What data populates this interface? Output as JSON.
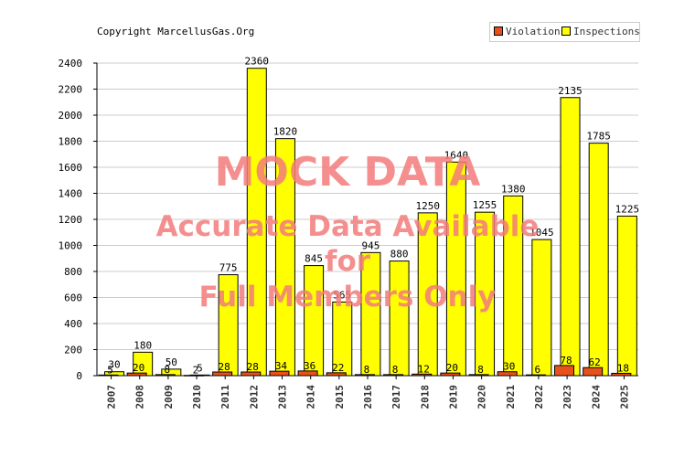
{
  "copyright": "Copyright MarcellusGas.Org",
  "watermark": {
    "line1": "MOCK DATA",
    "line2": "Accurate Data Available",
    "line3": "for",
    "line4": "Full Members Only",
    "color": "#f47c7c"
  },
  "colors": {
    "violations": "#e8521a",
    "inspections": "#ffff00",
    "axis": "#000000",
    "grid": "#cccccc"
  },
  "chart_data": {
    "type": "bar",
    "categories": [
      "2007",
      "2008",
      "2009",
      "2010",
      "2011",
      "2012",
      "2013",
      "2014",
      "2015",
      "2016",
      "2017",
      "2018",
      "2019",
      "2020",
      "2021",
      "2022",
      "2023",
      "2024",
      "2025"
    ],
    "series": [
      {
        "name": "Violations",
        "values": [
          5,
          20,
          8,
          2,
          28,
          28,
          34,
          36,
          22,
          8,
          8,
          12,
          20,
          8,
          30,
          6,
          78,
          62,
          18
        ]
      },
      {
        "name": "Inspections",
        "values": [
          30,
          180,
          50,
          5,
          775,
          2360,
          1820,
          845,
          565,
          945,
          880,
          1250,
          1640,
          1255,
          1380,
          1045,
          2135,
          1785,
          1225
        ]
      }
    ],
    "yticks": [
      "0",
      "200",
      "400",
      "600",
      "800",
      "1000",
      "1200",
      "1400",
      "1600",
      "1800",
      "2000",
      "2200",
      "2400"
    ],
    "ylim": [
      0,
      2400
    ],
    "grid": true,
    "legend": "top-right"
  }
}
